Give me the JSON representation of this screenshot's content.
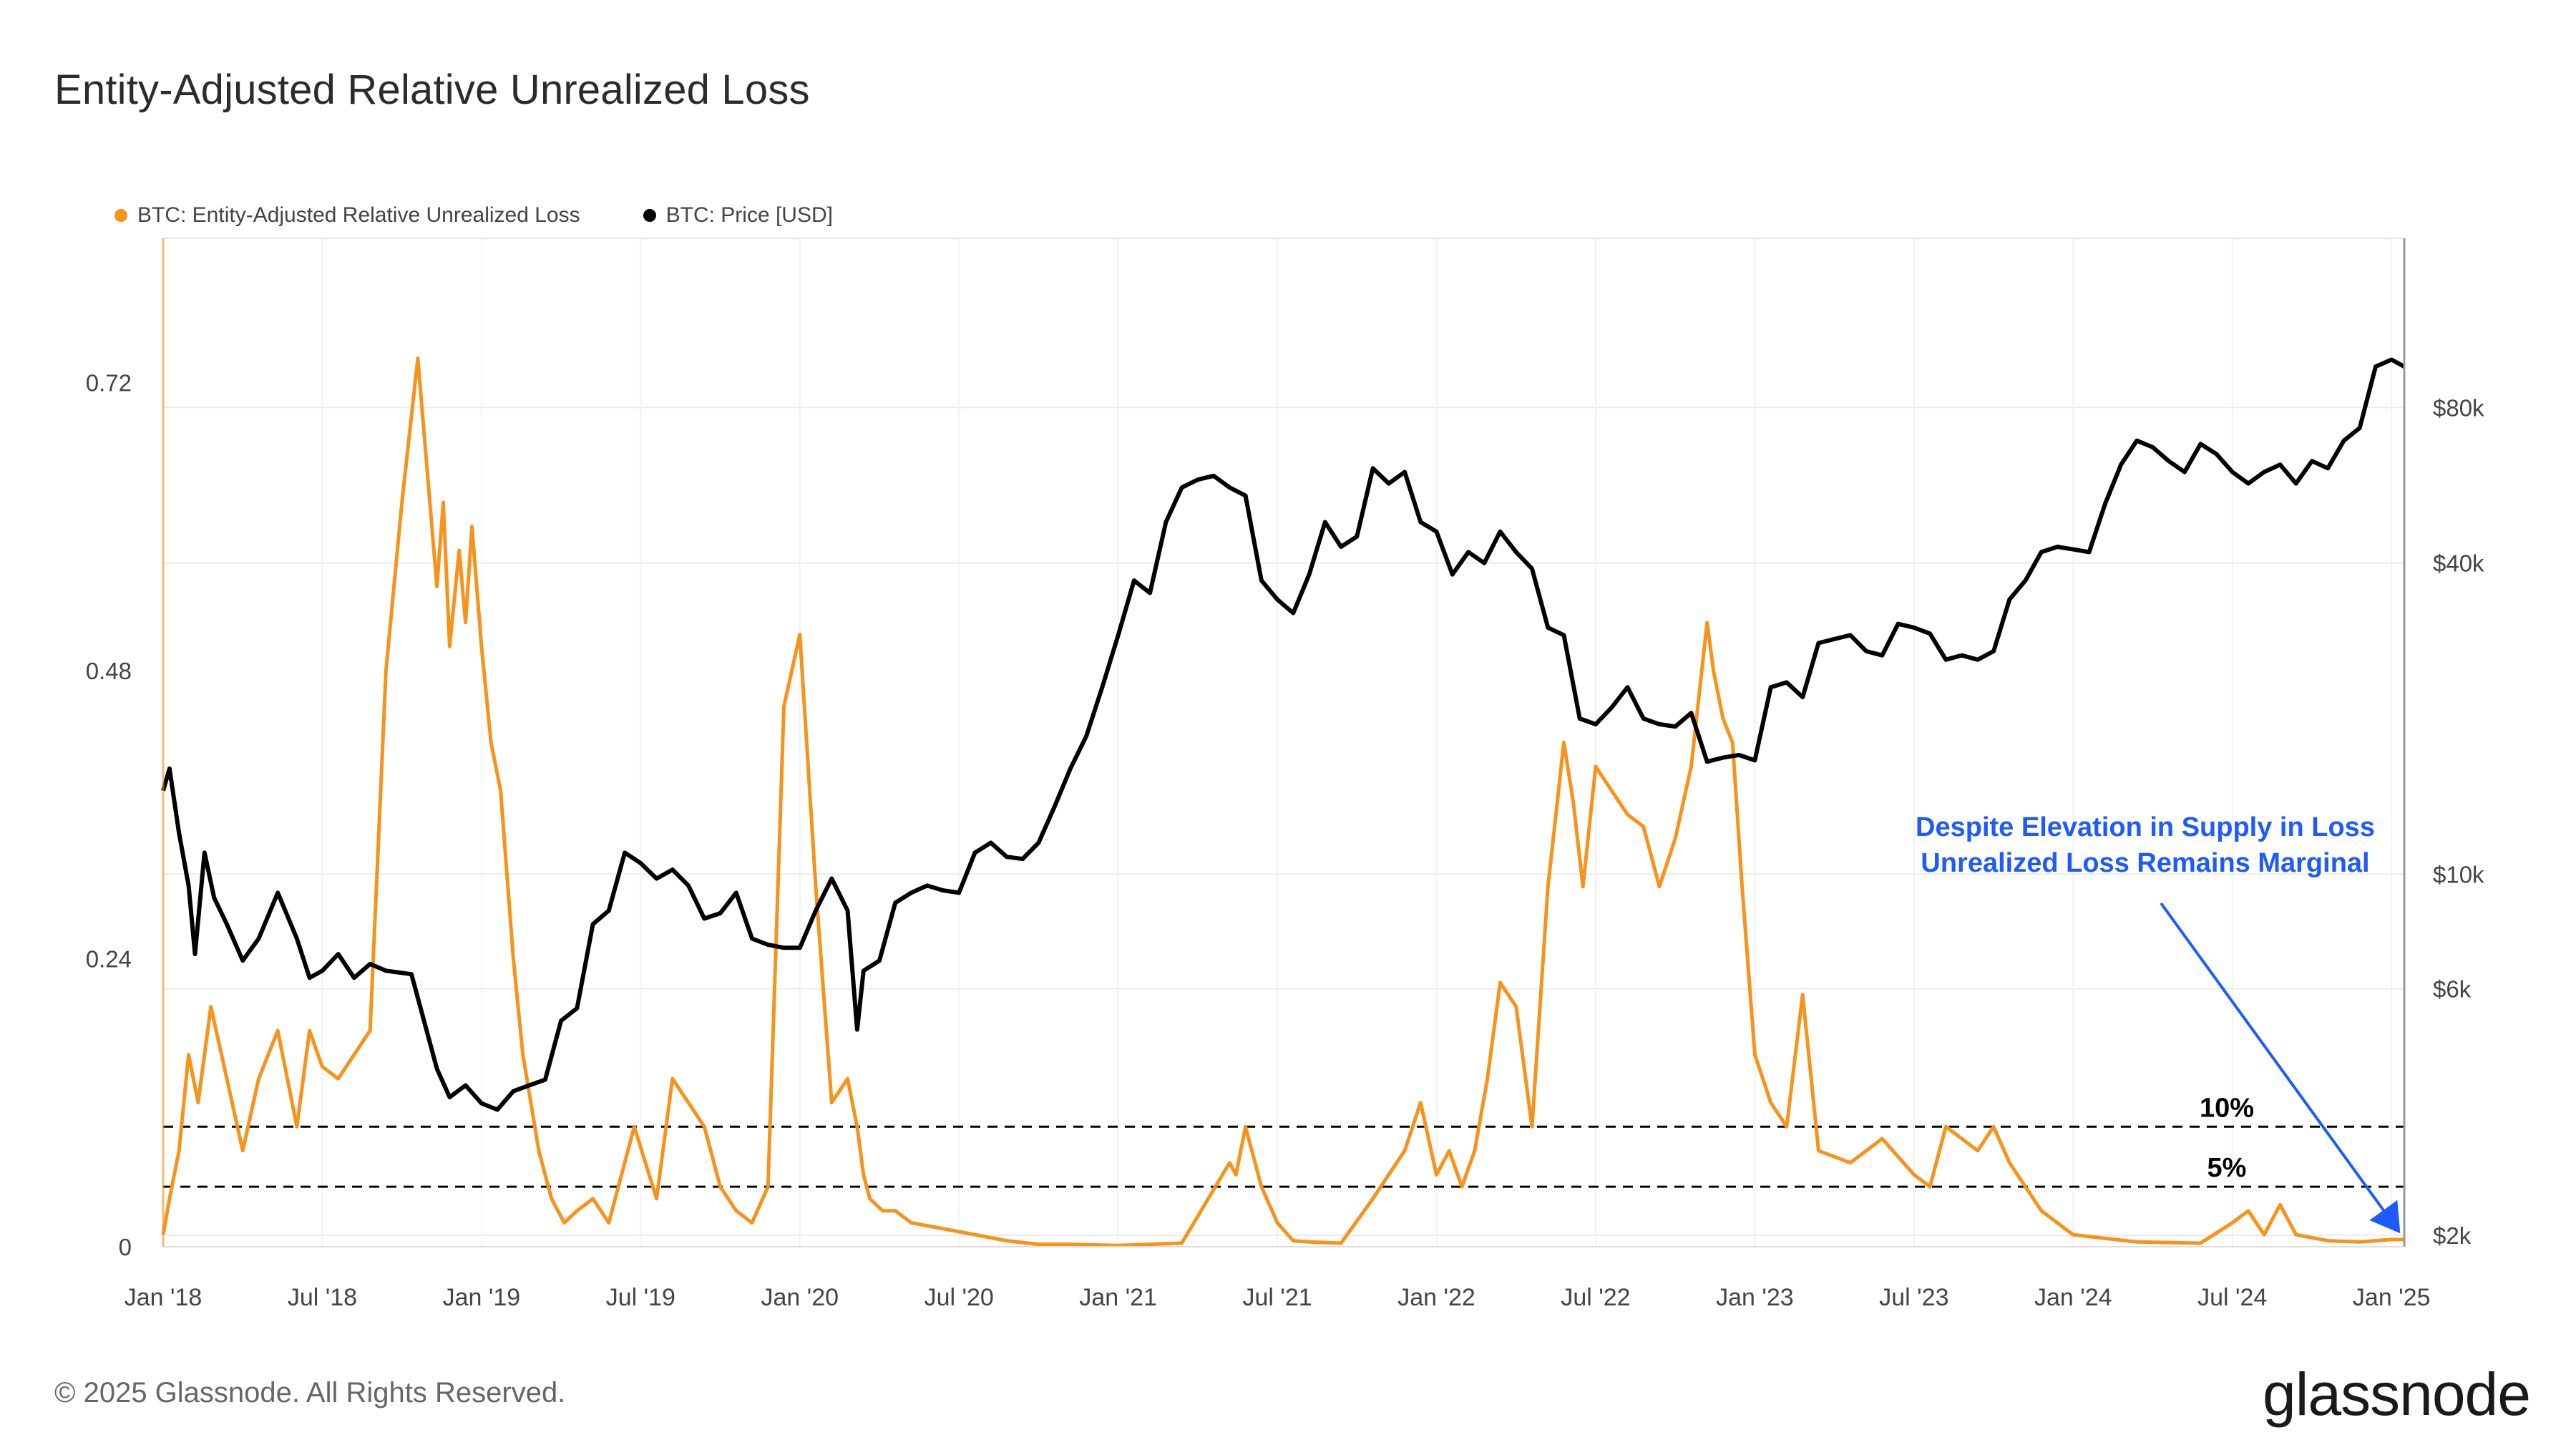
{
  "title": "Entity-Adjusted Relative Unrealized Loss",
  "footer": "© 2025 Glassnode. All Rights Reserved.",
  "brand": "glassnode",
  "colors": {
    "loss": "#F7931A",
    "price": "#000000",
    "annotation": "#1E5BFF",
    "grid": "#EBEBEB"
  },
  "chart_data": {
    "type": "line",
    "title": "Entity-Adjusted Relative Unrealized Loss",
    "legend": [
      {
        "name": "BTC: Entity-Adjusted Relative Unrealized Loss",
        "color": "#F7931A"
      },
      {
        "name": "BTC: Price [USD]",
        "color": "#000000"
      }
    ],
    "x_ticks": [
      "Jan '18",
      "Jul '18",
      "Jan '19",
      "Jul '19",
      "Jan '20",
      "Jul '20",
      "Jan '21",
      "Jul '21",
      "Jan '22",
      "Jul '22",
      "Jan '23",
      "Jul '23",
      "Jan '24",
      "Jul '24",
      "Jan '25"
    ],
    "x_range": [
      2018.0,
      2025.04
    ],
    "y_left": {
      "range": [
        0,
        0.84
      ],
      "ticks": [
        0,
        0.24,
        0.48,
        0.72
      ],
      "labels": [
        "0",
        "0.24",
        "0.48",
        "0.72"
      ]
    },
    "y_right": {
      "scale": "log",
      "range": [
        1900,
        170000
      ],
      "ticks": [
        2000,
        6000,
        10000,
        40000,
        80000
      ],
      "labels": [
        "$2k",
        "$6k",
        "$10k",
        "$40k",
        "$80k"
      ]
    },
    "reference_lines": [
      {
        "value": 0.1,
        "label": "10%"
      },
      {
        "value": 0.05,
        "label": "5%"
      }
    ],
    "annotation": {
      "lines": [
        "Despite Elevation in Supply in Loss",
        "Unrealized Loss Remains Marginal"
      ]
    },
    "series": [
      {
        "name": "BTC: Entity-Adjusted Relative Unrealized Loss",
        "axis": "left",
        "x": [
          2018.0,
          2018.02,
          2018.05,
          2018.08,
          2018.11,
          2018.15,
          2018.2,
          2018.25,
          2018.3,
          2018.36,
          2018.42,
          2018.46,
          2018.5,
          2018.55,
          2018.6,
          2018.65,
          2018.7,
          2018.75,
          2018.8,
          2018.86,
          2018.88,
          2018.9,
          2018.93,
          2018.95,
          2018.97,
          2019.0,
          2019.03,
          2019.06,
          2019.1,
          2019.13,
          2019.18,
          2019.22,
          2019.26,
          2019.3,
          2019.35,
          2019.4,
          2019.48,
          2019.55,
          2019.6,
          2019.7,
          2019.75,
          2019.8,
          2019.85,
          2019.9,
          2019.95,
          2020.0,
          2020.05,
          2020.1,
          2020.15,
          2020.18,
          2020.2,
          2020.22,
          2020.26,
          2020.3,
          2020.35,
          2020.45,
          2020.55,
          2020.65,
          2020.75,
          2020.85,
          2021.0,
          2021.2,
          2021.35,
          2021.37,
          2021.4,
          2021.45,
          2021.5,
          2021.55,
          2021.6,
          2021.7,
          2021.8,
          2021.9,
          2021.95,
          2022.0,
          2022.04,
          2022.08,
          2022.12,
          2022.16,
          2022.2,
          2022.25,
          2022.3,
          2022.35,
          2022.4,
          2022.43,
          2022.46,
          2022.5,
          2022.55,
          2022.6,
          2022.65,
          2022.7,
          2022.75,
          2022.8,
          2022.85,
          2022.87,
          2022.9,
          2022.93,
          2022.96,
          2023.0,
          2023.05,
          2023.1,
          2023.15,
          2023.2,
          2023.3,
          2023.4,
          2023.5,
          2023.55,
          2023.6,
          2023.7,
          2023.75,
          2023.8,
          2023.9,
          2024.0,
          2024.2,
          2024.4,
          2024.5,
          2024.55,
          2024.6,
          2024.65,
          2024.7,
          2024.8,
          2024.9,
          2025.0,
          2025.04
        ],
        "values": [
          0.01,
          0.04,
          0.08,
          0.16,
          0.12,
          0.2,
          0.14,
          0.08,
          0.14,
          0.18,
          0.1,
          0.18,
          0.15,
          0.14,
          0.16,
          0.18,
          0.48,
          0.62,
          0.74,
          0.55,
          0.62,
          0.5,
          0.58,
          0.52,
          0.6,
          0.5,
          0.42,
          0.38,
          0.24,
          0.16,
          0.08,
          0.04,
          0.02,
          0.03,
          0.04,
          0.02,
          0.1,
          0.04,
          0.14,
          0.1,
          0.05,
          0.03,
          0.02,
          0.05,
          0.45,
          0.51,
          0.3,
          0.12,
          0.14,
          0.1,
          0.06,
          0.04,
          0.03,
          0.03,
          0.02,
          0.015,
          0.01,
          0.005,
          0.002,
          0.002,
          0.001,
          0.003,
          0.07,
          0.06,
          0.1,
          0.05,
          0.02,
          0.005,
          0.004,
          0.003,
          0.04,
          0.08,
          0.12,
          0.06,
          0.08,
          0.05,
          0.08,
          0.14,
          0.22,
          0.2,
          0.1,
          0.3,
          0.42,
          0.37,
          0.3,
          0.4,
          0.38,
          0.36,
          0.35,
          0.3,
          0.34,
          0.4,
          0.52,
          0.48,
          0.44,
          0.42,
          0.3,
          0.16,
          0.12,
          0.1,
          0.21,
          0.08,
          0.07,
          0.09,
          0.06,
          0.05,
          0.1,
          0.08,
          0.1,
          0.07,
          0.03,
          0.01,
          0.004,
          0.003,
          0.02,
          0.03,
          0.01,
          0.035,
          0.01,
          0.005,
          0.004,
          0.006,
          0.006
        ]
      },
      {
        "name": "BTC: Price [USD]",
        "axis": "right",
        "x": [
          2018.0,
          2018.02,
          2018.05,
          2018.08,
          2018.1,
          2018.13,
          2018.16,
          2018.2,
          2018.25,
          2018.3,
          2018.36,
          2018.42,
          2018.46,
          2018.5,
          2018.55,
          2018.6,
          2018.65,
          2018.7,
          2018.78,
          2018.86,
          2018.9,
          2018.95,
          2019.0,
          2019.05,
          2019.1,
          2019.15,
          2019.2,
          2019.25,
          2019.3,
          2019.35,
          2019.4,
          2019.45,
          2019.5,
          2019.55,
          2019.6,
          2019.65,
          2019.7,
          2019.75,
          2019.8,
          2019.85,
          2019.9,
          2019.95,
          2020.0,
          2020.05,
          2020.1,
          2020.15,
          2020.18,
          2020.2,
          2020.25,
          2020.3,
          2020.35,
          2020.4,
          2020.45,
          2020.5,
          2020.55,
          2020.6,
          2020.65,
          2020.7,
          2020.75,
          2020.8,
          2020.85,
          2020.9,
          2020.95,
          2021.0,
          2021.05,
          2021.1,
          2021.15,
          2021.2,
          2021.25,
          2021.3,
          2021.35,
          2021.4,
          2021.45,
          2021.5,
          2021.55,
          2021.6,
          2021.65,
          2021.7,
          2021.75,
          2021.8,
          2021.85,
          2021.9,
          2021.95,
          2022.0,
          2022.05,
          2022.1,
          2022.15,
          2022.2,
          2022.25,
          2022.3,
          2022.35,
          2022.4,
          2022.45,
          2022.5,
          2022.55,
          2022.6,
          2022.65,
          2022.7,
          2022.75,
          2022.8,
          2022.85,
          2022.9,
          2022.95,
          2023.0,
          2023.05,
          2023.1,
          2023.15,
          2023.2,
          2023.25,
          2023.3,
          2023.35,
          2023.4,
          2023.45,
          2023.5,
          2023.55,
          2023.6,
          2023.65,
          2023.7,
          2023.75,
          2023.8,
          2023.85,
          2023.9,
          2023.95,
          2024.0,
          2024.05,
          2024.1,
          2024.15,
          2024.2,
          2024.25,
          2024.3,
          2024.35,
          2024.4,
          2024.45,
          2024.5,
          2024.55,
          2024.6,
          2024.65,
          2024.7,
          2024.75,
          2024.8,
          2024.85,
          2024.9,
          2024.95,
          2025.0,
          2025.04
        ],
        "values": [
          14500,
          16000,
          12000,
          9500,
          7000,
          11000,
          9000,
          8000,
          6800,
          7500,
          9200,
          7500,
          6300,
          6500,
          7000,
          6300,
          6700,
          6500,
          6400,
          4200,
          3700,
          3900,
          3600,
          3500,
          3800,
          3900,
          4000,
          5200,
          5500,
          8000,
          8500,
          11000,
          10500,
          9800,
          10200,
          9500,
          8200,
          8400,
          9200,
          7500,
          7300,
          7200,
          7200,
          8500,
          9800,
          8500,
          5000,
          6500,
          6800,
          8800,
          9200,
          9500,
          9300,
          9200,
          11000,
          11500,
          10800,
          10700,
          11500,
          13500,
          16000,
          18500,
          23000,
          29000,
          37000,
          35000,
          48000,
          56000,
          58000,
          59000,
          56000,
          54000,
          37000,
          34000,
          32000,
          38000,
          48000,
          43000,
          45000,
          61000,
          57000,
          60000,
          48000,
          46000,
          38000,
          42000,
          40000,
          46000,
          42000,
          39000,
          30000,
          29000,
          20000,
          19500,
          21000,
          23000,
          20000,
          19500,
          19300,
          20500,
          16500,
          16800,
          17000,
          16600,
          23000,
          23500,
          22000,
          28000,
          28500,
          29000,
          27000,
          26500,
          30500,
          30000,
          29200,
          26000,
          26500,
          26000,
          27000,
          34000,
          37000,
          42000,
          43000,
          42500,
          42000,
          52000,
          62000,
          69000,
          67000,
          63000,
          60000,
          68000,
          65000,
          60000,
          57000,
          60000,
          62000,
          57000,
          63000,
          61000,
          69000,
          73000,
          96000,
          99000,
          96000
        ]
      }
    ]
  }
}
